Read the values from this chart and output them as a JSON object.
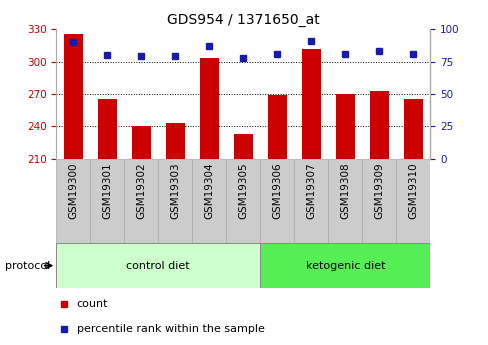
{
  "title": "GDS954 / 1371650_at",
  "samples": [
    "GSM19300",
    "GSM19301",
    "GSM19302",
    "GSM19303",
    "GSM19304",
    "GSM19305",
    "GSM19306",
    "GSM19307",
    "GSM19308",
    "GSM19309",
    "GSM19310"
  ],
  "counts": [
    326,
    265,
    240,
    243,
    303,
    233,
    269,
    312,
    270,
    273,
    265
  ],
  "percentile_ranks": [
    90,
    80,
    79,
    79,
    87,
    78,
    81,
    91,
    81,
    83,
    81
  ],
  "ylim_left": [
    210,
    330
  ],
  "ylim_right": [
    0,
    100
  ],
  "yticks_left": [
    210,
    240,
    270,
    300,
    330
  ],
  "yticks_right": [
    0,
    25,
    50,
    75,
    100
  ],
  "bar_color": "#cc0000",
  "dot_color": "#1a1aaa",
  "plot_bg_color": "#ffffff",
  "n_control": 6,
  "n_ketogenic": 5,
  "control_color": "#ccffcc",
  "ketogenic_color": "#55ee55",
  "sample_box_color": "#cccccc",
  "sample_box_edge": "#aaaaaa",
  "protocol_label": "protocol",
  "control_label": "control diet",
  "ketogenic_label": "ketogenic diet",
  "legend_count_label": "count",
  "legend_pct_label": "percentile rank within the sample",
  "bar_width": 0.55,
  "grid_lines": [
    240,
    270,
    300
  ],
  "title_fontsize": 10,
  "tick_fontsize": 7.5,
  "label_fontsize": 8
}
